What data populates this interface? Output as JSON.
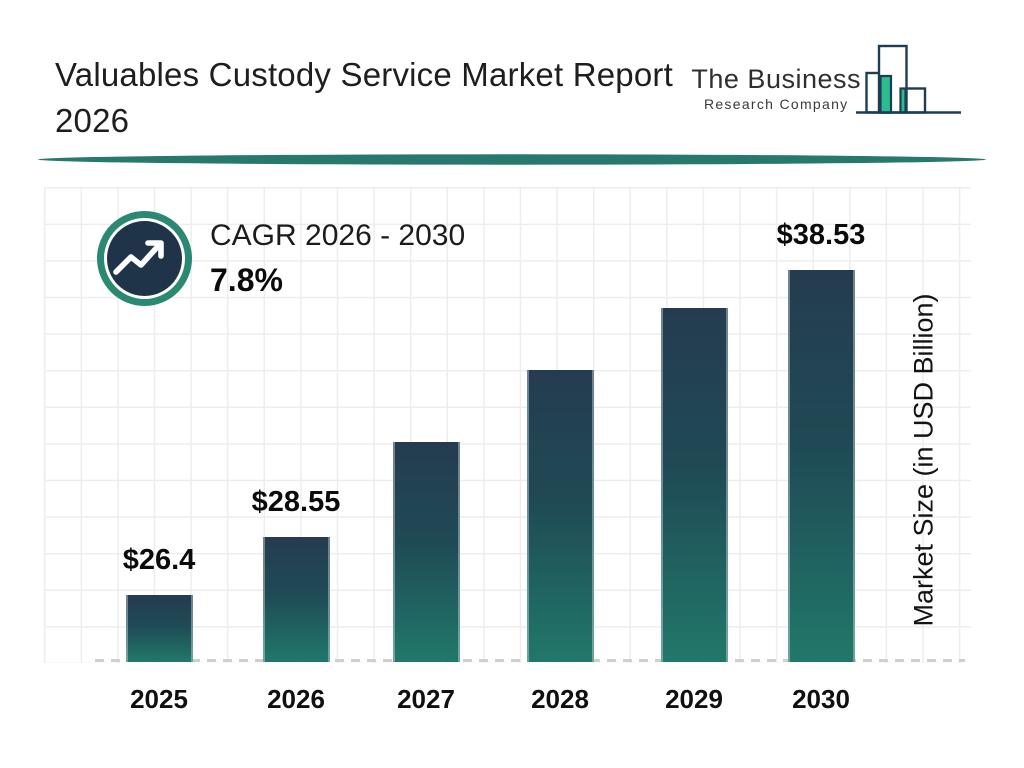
{
  "header": {
    "title_line1": "Valuables Custody Service Market Report",
    "title_line2": "2026",
    "logo": {
      "name": "The Business",
      "subname": "Research Company"
    }
  },
  "cagr": {
    "label": "CAGR 2026 - 2030",
    "value": "7.8%"
  },
  "chart_data": {
    "type": "bar",
    "title": "Valuables Custody Service Market Report 2026",
    "categories": [
      "2025",
      "2026",
      "2027",
      "2028",
      "2029",
      "2030"
    ],
    "values": [
      26.4,
      28.55,
      32.1,
      34.8,
      37.1,
      38.53
    ],
    "labeled_values_note": "only 2025, 2026 and 2030 carry data labels; 2027-2029 estimated from bar heights",
    "bar_labels": [
      {
        "amount": "$26.4",
        "unit": "billion"
      },
      {
        "amount": "$28.55",
        "unit": "billion"
      },
      null,
      null,
      null,
      {
        "amount": "$38.53",
        "unit": "billion"
      }
    ],
    "xlabel": "",
    "ylabel": "Market Size (in USD Billion)",
    "ylim": [
      23.9,
      40
    ],
    "grid": true,
    "legend": false,
    "annotations": {
      "cagr_label": "CAGR 2026 - 2030",
      "cagr_value": "7.8%"
    }
  },
  "colors": {
    "bar_gradient_top": "#253c50",
    "bar_gradient_bottom": "#21786a",
    "divider_teal": "#26796c",
    "badge_ring_teal": "#2b8973",
    "badge_navy": "#203449",
    "logo_outline_navy": "#1d3e52",
    "logo_green": "#2bbd8e",
    "gridline": "#ededed",
    "baseline_dash": "#cfcfcf"
  }
}
